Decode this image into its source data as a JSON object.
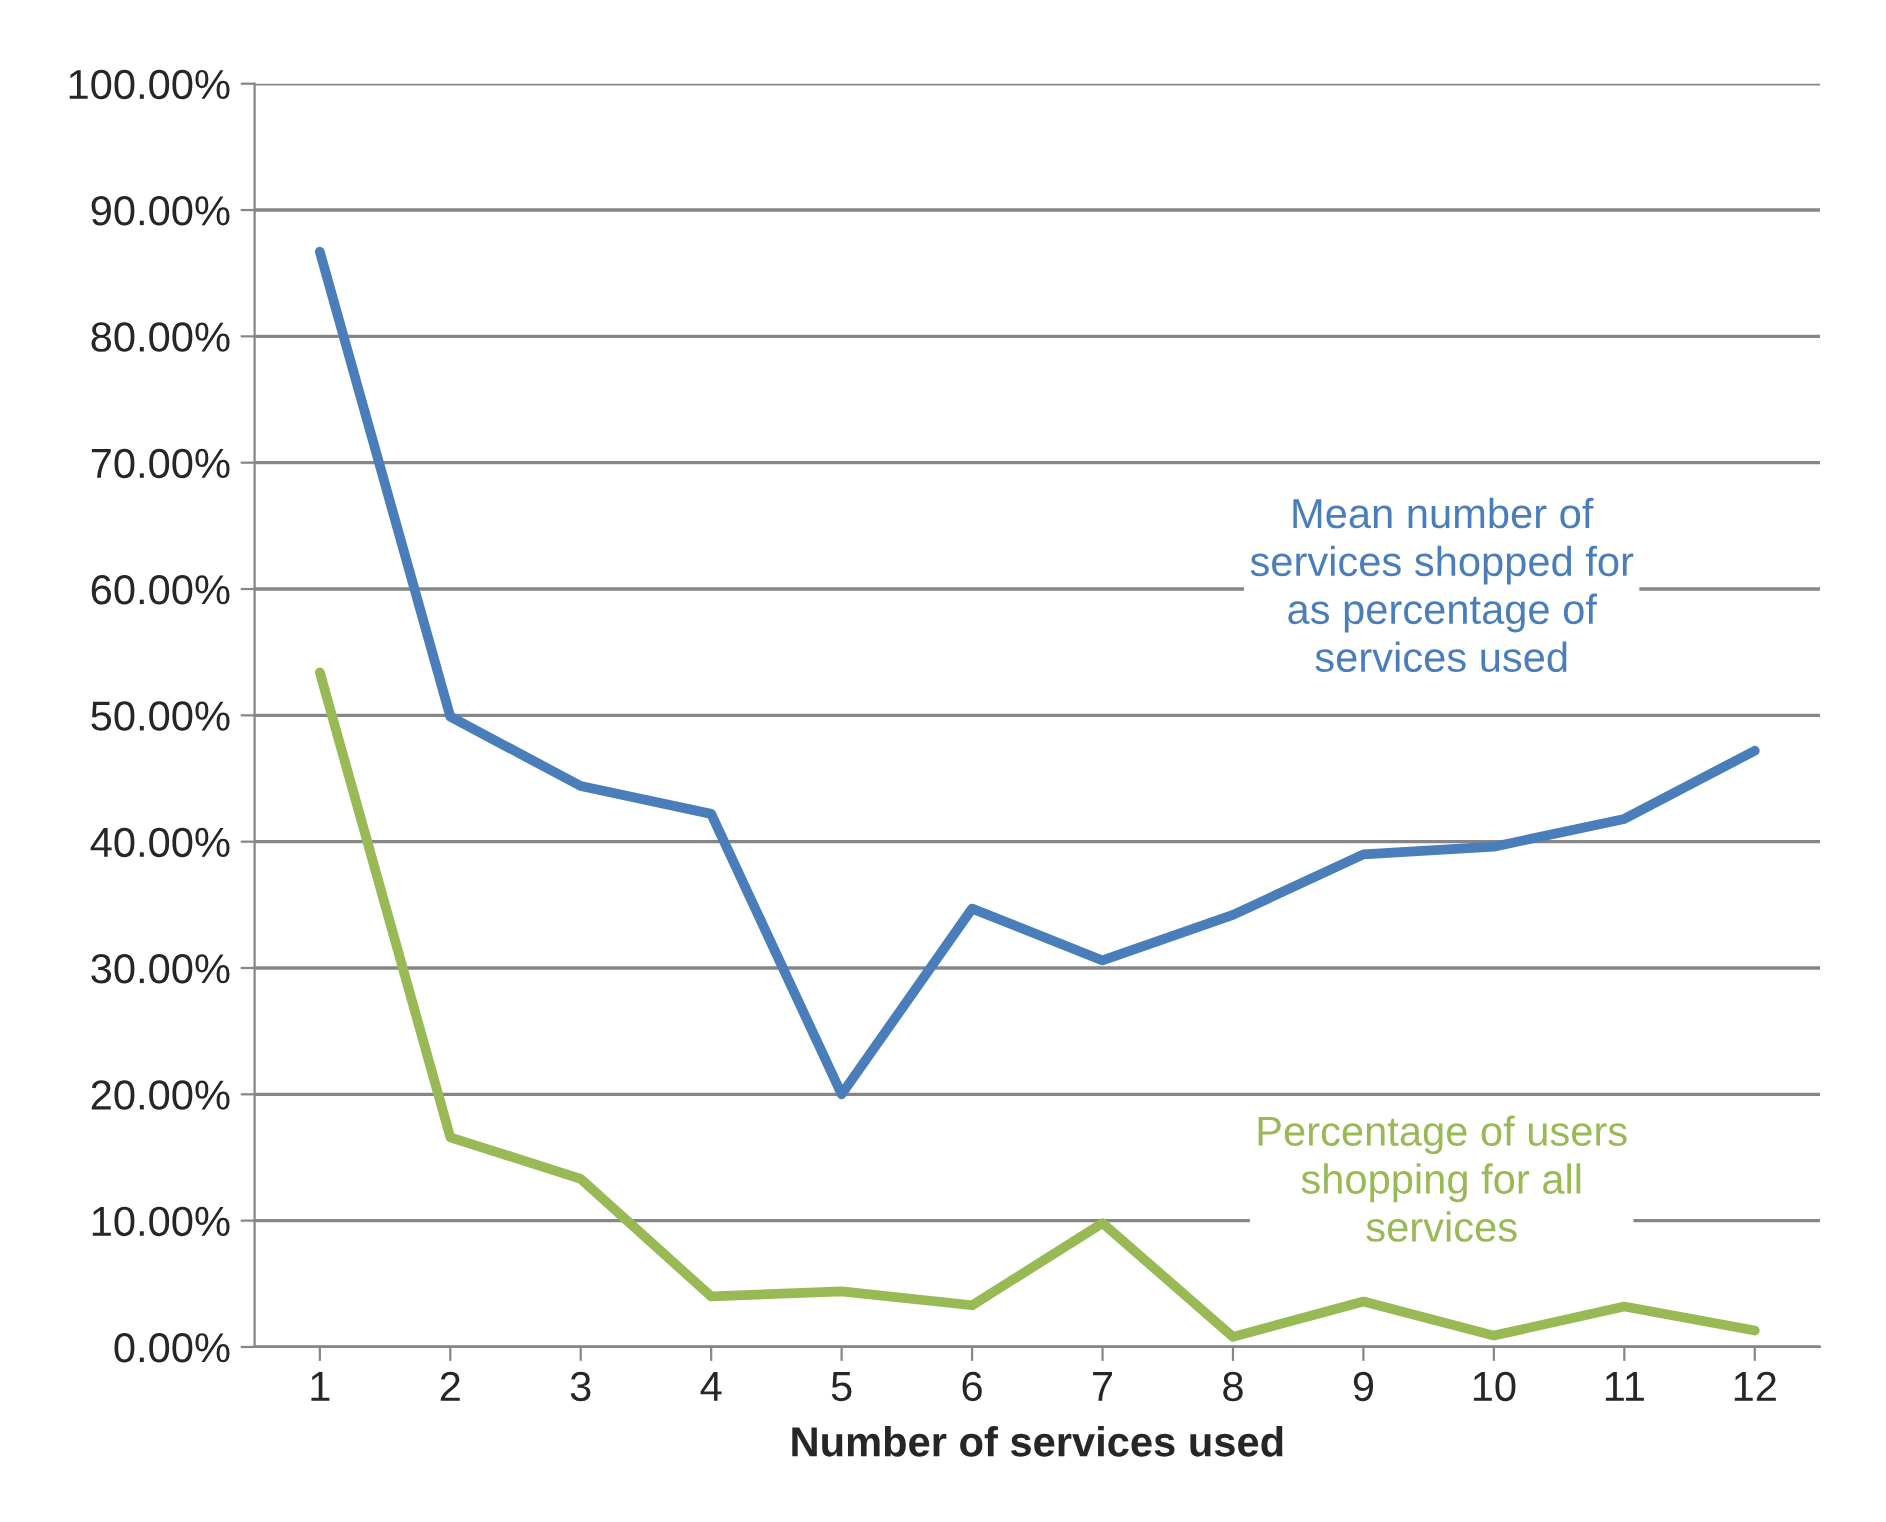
{
  "chart_data": {
    "type": "line",
    "xlabel": "Number of services used",
    "categories": [
      "1",
      "2",
      "3",
      "4",
      "5",
      "6",
      "7",
      "8",
      "9",
      "10",
      "11",
      "12"
    ],
    "series": [
      {
        "name": "Mean number of services shopped for as percentage of services used",
        "color": "#4a7ebb",
        "values": [
          86.7,
          49.9,
          44.4,
          42.2,
          20.0,
          34.7,
          30.6,
          34.2,
          39.0,
          39.6,
          41.8,
          47.2
        ]
      },
      {
        "name": "Percentage of users shopping for all services",
        "color": "#98b954",
        "values": [
          53.4,
          16.6,
          13.3,
          4.0,
          4.4,
          3.3,
          9.8,
          0.8,
          3.6,
          0.9,
          3.2,
          1.3
        ]
      }
    ],
    "ylim": [
      0,
      100
    ],
    "yticks": [
      {
        "value": 0,
        "label": "0.00%"
      },
      {
        "value": 10,
        "label": "10.00%"
      },
      {
        "value": 20,
        "label": "20.00%"
      },
      {
        "value": 30,
        "label": "30.00%"
      },
      {
        "value": 40,
        "label": "40.00%"
      },
      {
        "value": 50,
        "label": "50.00%"
      },
      {
        "value": 60,
        "label": "60.00%"
      },
      {
        "value": 70,
        "label": "70.00%"
      },
      {
        "value": 80,
        "label": "80.00%"
      },
      {
        "value": 90,
        "label": "90.00%"
      },
      {
        "value": 100,
        "label": "100.00%"
      }
    ],
    "grid": "y",
    "legend": false,
    "marker": "none",
    "line_style": "solid"
  }
}
